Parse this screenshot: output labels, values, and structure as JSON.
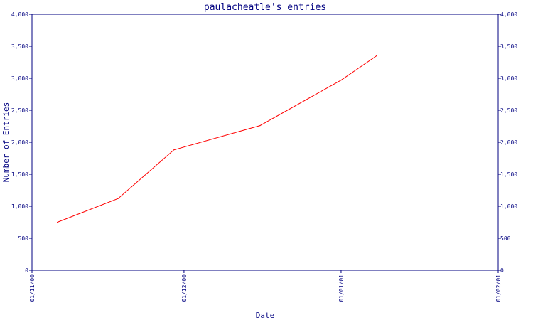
{
  "chart_data": {
    "type": "line",
    "title": "paulacheatle's entries",
    "xlabel": "Date",
    "ylabel": "Number of Entries",
    "ylim": [
      0,
      4000
    ],
    "y_ticks": [
      0,
      500,
      1000,
      1500,
      2000,
      2500,
      3000,
      3500,
      4000
    ],
    "y_tick_labels": [
      "0",
      "500",
      "1,000",
      "1,500",
      "2,000",
      "2,500",
      "3,000",
      "3,500",
      "4,000"
    ],
    "x_ticks": [
      "01/11/00",
      "01/12/00",
      "01/01/01",
      "01/02/01"
    ],
    "x": [
      "2000-11-06",
      "2000-11-18",
      "2000-11-29",
      "2000-12-16",
      "2001-01-01",
      "2001-01-08"
    ],
    "series": [
      {
        "values": [
          750,
          1120,
          1880,
          2260,
          2970,
          3350
        ]
      }
    ],
    "grid": false,
    "colors": {
      "line": "#ff0000",
      "axis": "#000080",
      "text": "#000080"
    }
  }
}
